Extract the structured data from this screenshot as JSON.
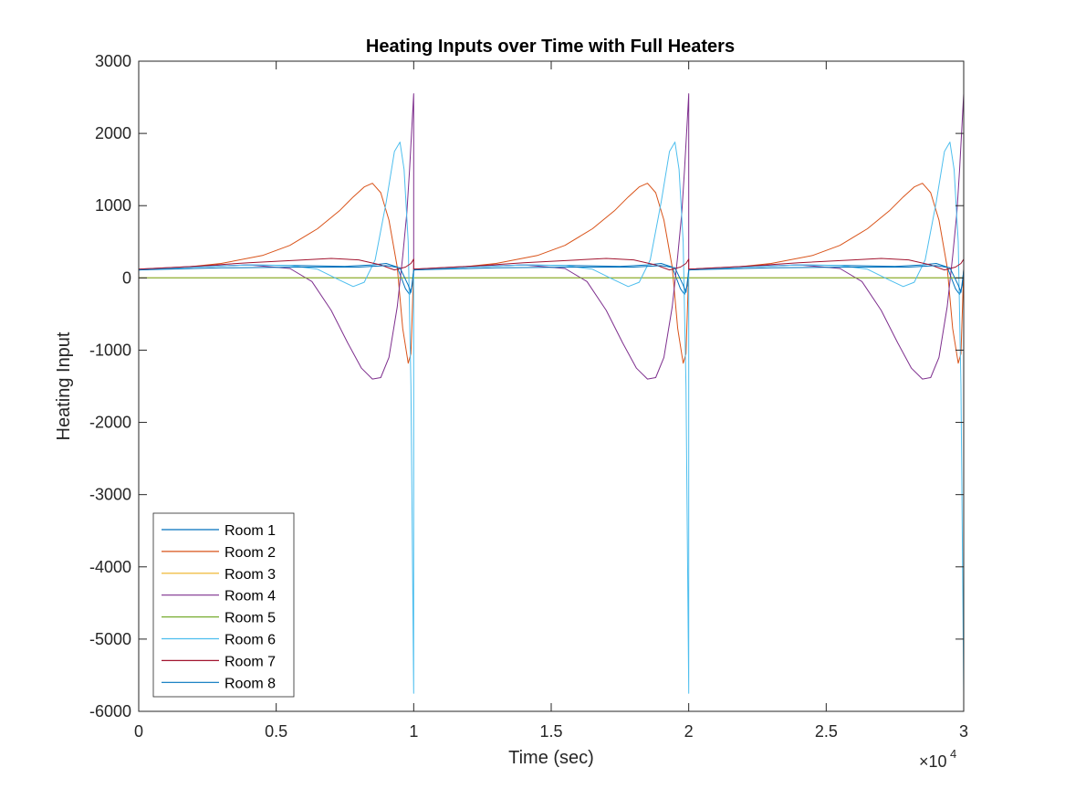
{
  "chart_data": {
    "type": "line",
    "title": "Heating Inputs over Time with Full Heaters",
    "xlabel": "Time (sec)",
    "ylabel": "Heating Input",
    "x_multiplier_label": "×10",
    "x_multiplier_exponent": "4",
    "xlim": [
      0,
      30000
    ],
    "ylim": [
      -6000,
      3000
    ],
    "x_ticks": [
      0,
      5000,
      10000,
      15000,
      20000,
      25000,
      30000
    ],
    "x_tick_labels": [
      "0",
      "0.5",
      "1",
      "1.5",
      "2",
      "2.5",
      "3"
    ],
    "y_ticks": [
      -6000,
      -5000,
      -4000,
      -3000,
      -2000,
      -1000,
      0,
      1000,
      2000,
      3000
    ],
    "y_tick_labels": [
      "-6000",
      "-5000",
      "-4000",
      "-3000",
      "-2000",
      "-1000",
      "0",
      "1000",
      "2000",
      "3000"
    ],
    "grid": false,
    "legend_placement": "bottom-left",
    "period_note": "pattern repeats every 10000 sec over 3 periods",
    "series": [
      {
        "name": "Room 1",
        "color": "#0072BD",
        "points": [
          [
            0,
            110
          ],
          [
            2000,
            150
          ],
          [
            4000,
            180
          ],
          [
            6000,
            170
          ],
          [
            7500,
            160
          ],
          [
            8500,
            180
          ],
          [
            9000,
            200
          ],
          [
            9400,
            150
          ],
          [
            9700,
            -150
          ],
          [
            9850,
            -230
          ],
          [
            9950,
            -100
          ],
          [
            10000,
            120
          ]
        ]
      },
      {
        "name": "Room 2",
        "color": "#D95319",
        "points": [
          [
            0,
            110
          ],
          [
            1500,
            140
          ],
          [
            3000,
            200
          ],
          [
            4500,
            310
          ],
          [
            5500,
            450
          ],
          [
            6500,
            680
          ],
          [
            7300,
            930
          ],
          [
            7800,
            1120
          ],
          [
            8200,
            1260
          ],
          [
            8500,
            1310
          ],
          [
            8800,
            1180
          ],
          [
            9100,
            800
          ],
          [
            9400,
            150
          ],
          [
            9600,
            -700
          ],
          [
            9800,
            -1180
          ],
          [
            9900,
            -1050
          ],
          [
            10000,
            120
          ]
        ]
      },
      {
        "name": "Room 3",
        "color": "#EDB120",
        "points": [
          [
            0,
            0
          ],
          [
            10000,
            0
          ]
        ]
      },
      {
        "name": "Room 4",
        "color": "#7E2F8E",
        "points": [
          [
            0,
            120
          ],
          [
            2000,
            160
          ],
          [
            4000,
            180
          ],
          [
            5500,
            130
          ],
          [
            6300,
            -50
          ],
          [
            7000,
            -450
          ],
          [
            7600,
            -900
          ],
          [
            8100,
            -1250
          ],
          [
            8500,
            -1400
          ],
          [
            8800,
            -1380
          ],
          [
            9100,
            -1100
          ],
          [
            9400,
            -400
          ],
          [
            9600,
            300
          ],
          [
            9750,
            900
          ],
          [
            9850,
            1500
          ],
          [
            9950,
            2200
          ],
          [
            10000,
            2550
          ]
        ]
      },
      {
        "name": "Room 5",
        "color": "#77AC30",
        "points": [
          [
            0,
            0
          ],
          [
            10000,
            0
          ]
        ]
      },
      {
        "name": "Room 6",
        "color": "#4DBEEE",
        "points": [
          [
            0,
            110
          ],
          [
            2000,
            150
          ],
          [
            4000,
            180
          ],
          [
            5500,
            170
          ],
          [
            6500,
            120
          ],
          [
            7300,
            -30
          ],
          [
            7800,
            -120
          ],
          [
            8200,
            -60
          ],
          [
            8600,
            250
          ],
          [
            9000,
            1050
          ],
          [
            9300,
            1750
          ],
          [
            9500,
            1880
          ],
          [
            9650,
            1500
          ],
          [
            9800,
            500
          ],
          [
            9900,
            -1500
          ],
          [
            10000,
            -5750
          ]
        ]
      },
      {
        "name": "Room 7",
        "color": "#A2142F",
        "points": [
          [
            0,
            120
          ],
          [
            2000,
            160
          ],
          [
            4000,
            210
          ],
          [
            6000,
            250
          ],
          [
            7000,
            270
          ],
          [
            8000,
            250
          ],
          [
            8800,
            180
          ],
          [
            9300,
            110
          ],
          [
            9700,
            150
          ],
          [
            9900,
            200
          ],
          [
            10000,
            260
          ]
        ]
      },
      {
        "name": "Room 8",
        "color": "#0072BD",
        "points": [
          [
            0,
            110
          ],
          [
            3000,
            140
          ],
          [
            6000,
            150
          ],
          [
            8000,
            150
          ],
          [
            9000,
            170
          ],
          [
            9500,
            140
          ],
          [
            9800,
            -100
          ],
          [
            9900,
            -200
          ],
          [
            10000,
            100
          ]
        ]
      }
    ]
  }
}
